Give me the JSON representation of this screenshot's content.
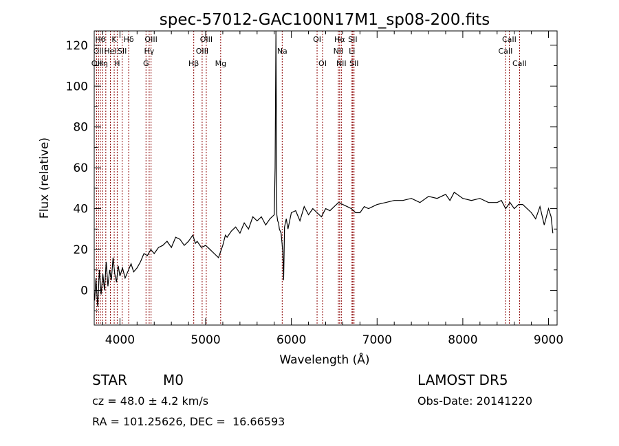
{
  "chart_data": {
    "type": "line",
    "title": "spec-57012-GAC100N17M1_sp08-200.fits",
    "xlabel": "Wavelength (Å)",
    "ylabel": "Flux (relative)",
    "xlim": [
      3700,
      9100
    ],
    "ylim": [
      -17,
      127
    ],
    "xticks": [
      4000,
      5000,
      6000,
      7000,
      8000,
      9000
    ],
    "yticks": [
      0,
      20,
      40,
      60,
      80,
      100,
      120
    ],
    "grid": false,
    "line_color": "#000000",
    "marker_color": "#8b0000",
    "series": [
      {
        "x": [
          3705,
          3720,
          3740,
          3760,
          3780,
          3800,
          3820,
          3840,
          3860,
          3880,
          3900,
          3920,
          3940,
          3960,
          3980,
          4000,
          4030,
          4060,
          4100,
          4130,
          4160,
          4200,
          4240,
          4280,
          4320,
          4360,
          4400,
          4450,
          4500,
          4550,
          4600,
          4650,
          4700,
          4750,
          4800,
          4850,
          4880,
          4900,
          4950,
          5000,
          5050,
          5100,
          5150,
          5200,
          5230,
          5250,
          5300,
          5350,
          5400,
          5450,
          5500,
          5550,
          5600,
          5650,
          5700,
          5750,
          5800,
          5810,
          5820,
          5830,
          5840,
          5850,
          5860,
          5880,
          5900,
          5910,
          5920,
          5940,
          5960,
          6000,
          6050,
          6100,
          6150,
          6200,
          6250,
          6300,
          6350,
          6400,
          6450,
          6500,
          6550,
          6600,
          6650,
          6700,
          6750,
          6800,
          6850,
          6900,
          7000,
          7100,
          7200,
          7300,
          7400,
          7500,
          7600,
          7700,
          7800,
          7850,
          7900,
          8000,
          8100,
          8200,
          8300,
          8400,
          8450,
          8500,
          8550,
          8600,
          8650,
          8700,
          8750,
          8800,
          8850,
          8900,
          8950,
          9000,
          9030,
          9050
        ],
        "y": [
          -5,
          6,
          -8,
          10,
          -2,
          8,
          0,
          14,
          2,
          10,
          5,
          16,
          8,
          4,
          12,
          7,
          11,
          6,
          10,
          13,
          9,
          11,
          14,
          18,
          17,
          20,
          18,
          21,
          22,
          24,
          21,
          26,
          25,
          22,
          24,
          27,
          23,
          24,
          21,
          22,
          20,
          18,
          16,
          22,
          27,
          26,
          29,
          31,
          28,
          33,
          30,
          36,
          34,
          36,
          32,
          35,
          37,
          60,
          135,
          37,
          34,
          33,
          30,
          28,
          19,
          5,
          31,
          35,
          30,
          38,
          39,
          34,
          41,
          37,
          40,
          38,
          36,
          40,
          39,
          41,
          43,
          42,
          41,
          40,
          38,
          38,
          41,
          40,
          42,
          43,
          44,
          44,
          45,
          43,
          46,
          45,
          47,
          44,
          48,
          45,
          44,
          45,
          43,
          43,
          44,
          40,
          43,
          40,
          42,
          42,
          40,
          38,
          35,
          41,
          32,
          40,
          36,
          28
        ]
      }
    ],
    "line_markers": [
      {
        "x": 3727,
        "label": "OII",
        "row": 2
      },
      {
        "x": 3750,
        "label": "OII",
        "row": 1
      },
      {
        "x": 3771,
        "label": "Hθ",
        "row": 0
      },
      {
        "x": 3798,
        "label": "Hη",
        "row": 2
      },
      {
        "x": 3835,
        "label": "",
        "row": 0
      },
      {
        "x": 3889,
        "label": "HeI",
        "row": 1
      },
      {
        "x": 3933,
        "label": "K",
        "row": 0
      },
      {
        "x": 3968,
        "label": "H",
        "row": 2
      },
      {
        "x": 4026,
        "label": "SII",
        "row": 1
      },
      {
        "x": 4102,
        "label": "Hδ",
        "row": 0
      },
      {
        "x": 4304,
        "label": "G",
        "row": 2
      },
      {
        "x": 4341,
        "label": "Hγ",
        "row": 1
      },
      {
        "x": 4363,
        "label": "OIII",
        "row": 0
      },
      {
        "x": 4861,
        "label": "Hβ",
        "row": 2
      },
      {
        "x": 4959,
        "label": "OIII",
        "row": 1
      },
      {
        "x": 5007,
        "label": "OIII",
        "row": 0
      },
      {
        "x": 5175,
        "label": "Mg",
        "row": 2
      },
      {
        "x": 5893,
        "label": "Na",
        "row": 1
      },
      {
        "x": 6300,
        "label": "OI",
        "row": 0
      },
      {
        "x": 6364,
        "label": "OI",
        "row": 2
      },
      {
        "x": 6548,
        "label": "NII",
        "row": 1
      },
      {
        "x": 6563,
        "label": "Hα",
        "row": 0
      },
      {
        "x": 6583,
        "label": "NII",
        "row": 2
      },
      {
        "x": 6707,
        "label": "Li",
        "row": 1
      },
      {
        "x": 6716,
        "label": "SII",
        "row": 0
      },
      {
        "x": 6731,
        "label": "SII",
        "row": 2
      },
      {
        "x": 8498,
        "label": "CaII",
        "row": 1
      },
      {
        "x": 8542,
        "label": "CaII",
        "row": 0
      },
      {
        "x": 8662,
        "label": "CaII",
        "row": 2
      }
    ]
  },
  "footer": {
    "class_label": "STAR",
    "subclass": "M0",
    "survey": "LAMOST DR5",
    "cz": "cz = 48.0 ± 4.2 km/s",
    "obs_date": "Obs-Date: 20141220",
    "coords": "RA = 101.25626, DEC =  16.66593"
  }
}
